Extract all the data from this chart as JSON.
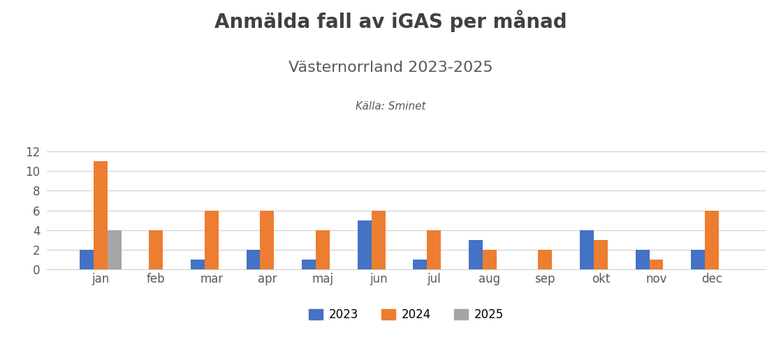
{
  "title": "Anmälda fall av iGAS per månad",
  "subtitle": "Västernorrland 2023-2025",
  "source": "Källa: Sminet",
  "months": [
    "jan",
    "feb",
    "mar",
    "apr",
    "maj",
    "jun",
    "jul",
    "aug",
    "sep",
    "okt",
    "nov",
    "dec"
  ],
  "series": {
    "2023": [
      2,
      0,
      1,
      2,
      1,
      5,
      1,
      3,
      0,
      4,
      2,
      2
    ],
    "2024": [
      11,
      4,
      6,
      6,
      4,
      6,
      4,
      2,
      2,
      3,
      1,
      6
    ],
    "2025": [
      4,
      0,
      0,
      0,
      0,
      0,
      0,
      0,
      0,
      0,
      0,
      0
    ]
  },
  "colors": {
    "2023": "#4472C4",
    "2024": "#ED7D31",
    "2025": "#A5A5A5"
  },
  "ylim": [
    0,
    13
  ],
  "yticks": [
    0,
    2,
    4,
    6,
    8,
    10,
    12
  ],
  "background_color": "#ffffff",
  "title_fontsize": 20,
  "subtitle_fontsize": 16,
  "source_fontsize": 11,
  "legend_labels": [
    "2023",
    "2024",
    "2025"
  ],
  "bar_width": 0.25,
  "title_color": "#404040",
  "subtitle_color": "#595959",
  "source_color": "#595959",
  "tick_color": "#595959",
  "grid_color": "#d0d0d0"
}
